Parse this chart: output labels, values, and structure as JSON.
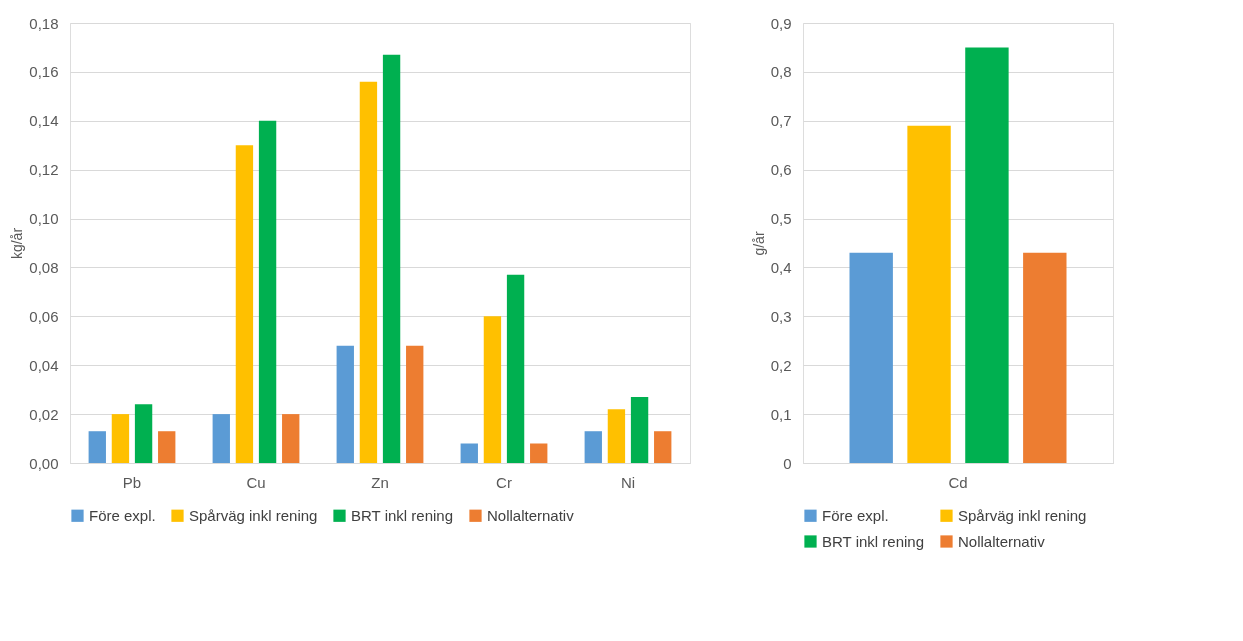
{
  "chart_data": [
    {
      "type": "bar",
      "ylabel": "kg/år",
      "categories": [
        "Pb",
        "Cu",
        "Zn",
        "Cr",
        "Ni"
      ],
      "series": [
        {
          "name": "Före expl.",
          "color": "#5b9bd5",
          "values": [
            0.013,
            0.02,
            0.048,
            0.008,
            0.013
          ]
        },
        {
          "name": "Spårväg inkl rening",
          "color": "#ffc000",
          "values": [
            0.02,
            0.13,
            0.156,
            0.06,
            0.022
          ]
        },
        {
          "name": "BRT inkl rening",
          "color": "#00b050",
          "values": [
            0.024,
            0.14,
            0.167,
            0.077,
            0.027
          ]
        },
        {
          "name": "Nollalternativ",
          "color": "#ed7d31",
          "values": [
            0.013,
            0.02,
            0.048,
            0.008,
            0.013
          ]
        }
      ],
      "ylim": [
        0,
        0.18
      ],
      "yticks": [
        {
          "value": 0,
          "label": "0,00"
        },
        {
          "value": 0.02,
          "label": "0,02"
        },
        {
          "value": 0.04,
          "label": "0,04"
        },
        {
          "value": 0.06,
          "label": "0,06"
        },
        {
          "value": 0.08,
          "label": "0,08"
        },
        {
          "value": 0.1,
          "label": "0,10"
        },
        {
          "value": 0.12,
          "label": "0,12"
        },
        {
          "value": 0.14,
          "label": "0,14"
        },
        {
          "value": 0.16,
          "label": "0,16"
        },
        {
          "value": 0.18,
          "label": "0,18"
        }
      ],
      "grid": "y",
      "legend": "bottom"
    },
    {
      "type": "bar",
      "ylabel": "g/år",
      "categories": [
        "Cd"
      ],
      "series": [
        {
          "name": "Före expl.",
          "color": "#5b9bd5",
          "values": [
            0.43
          ]
        },
        {
          "name": "Spårväg inkl rening",
          "color": "#ffc000",
          "values": [
            0.69
          ]
        },
        {
          "name": "BRT inkl rening",
          "color": "#00b050",
          "values": [
            0.85
          ]
        },
        {
          "name": "Nollalternativ",
          "color": "#ed7d31",
          "values": [
            0.43
          ]
        }
      ],
      "ylim": [
        0,
        0.9
      ],
      "yticks": [
        0,
        {
          "value": 0.1,
          "label": "0,1"
        },
        {
          "value": 0.2,
          "label": "0,2"
        },
        {
          "value": 0.3,
          "label": "0,3"
        },
        {
          "value": 0.4,
          "label": "0,4"
        },
        {
          "value": 0.5,
          "label": "0,5"
        },
        {
          "value": 0.6,
          "label": "0,6"
        },
        {
          "value": 0.7,
          "label": "0,7"
        },
        {
          "value": 0.8,
          "label": "0,8"
        },
        {
          "value": 0.9,
          "label": "0,9"
        }
      ],
      "grid": "y",
      "legend": "bottom"
    }
  ]
}
